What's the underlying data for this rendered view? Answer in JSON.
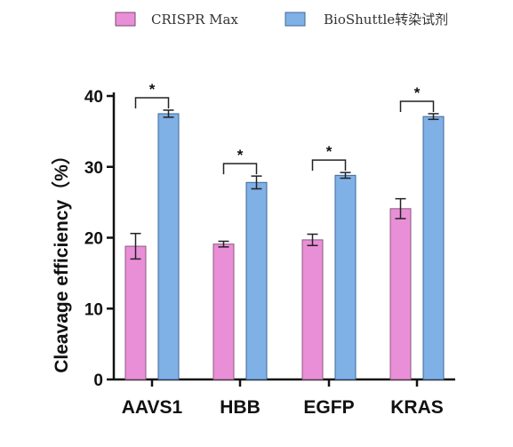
{
  "chart_data": {
    "type": "bar",
    "categories": [
      "AAVS1",
      "HBB",
      "EGFP",
      "KRAS"
    ],
    "series": [
      {
        "name": "CRISPR Max",
        "color": "#e98fd7",
        "values": [
          18.8,
          19.1,
          19.7,
          24.1
        ],
        "errors": [
          1.8,
          0.4,
          0.8,
          1.4
        ]
      },
      {
        "name": "BioShuttle转染试剂",
        "color": "#7fb0e6",
        "values": [
          37.5,
          27.8,
          28.8,
          37.1
        ],
        "errors": [
          0.5,
          0.9,
          0.4,
          0.4
        ]
      }
    ],
    "ylabel": "Cleavage efficiency（%）",
    "ylim": [
      0,
      40
    ],
    "yticks": [
      0,
      10,
      20,
      30,
      40
    ],
    "significance": [
      "*",
      "*",
      "*",
      "*"
    ],
    "legend_position": "top"
  }
}
